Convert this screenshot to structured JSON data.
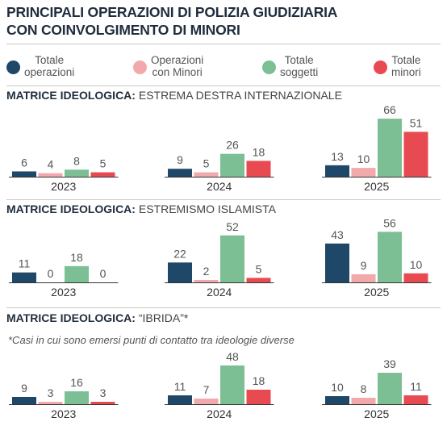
{
  "title": {
    "line1": "PRINCIPALI OPERAZIONI DI POLIZIA GIUDIZIARIA",
    "line2": "CON COINVOLGIMENTO DI MINORI"
  },
  "legend": [
    {
      "line1": "Totale",
      "line2": "operazioni",
      "color": "#1f4768"
    },
    {
      "line1": "Operazioni",
      "line2": "con Minori",
      "color": "#f2a9ab"
    },
    {
      "line1": "Totale",
      "line2": "soggetti",
      "color": "#7dbf95"
    },
    {
      "line1": "Totale",
      "line2": "minori",
      "color": "#e84a52"
    }
  ],
  "sections": [
    {
      "label": "MATRICE IDEOLOGICA",
      "sep": ": ",
      "subtitle": "ESTREMA DESTRA INTERNAZIONALE",
      "note": ""
    },
    {
      "label": "MATRICE IDEOLOGICA",
      "sep": ": ",
      "subtitle": "ESTREMISMO ISLAMISTA",
      "note": ""
    },
    {
      "label": "MATRICE IDEOLOGICA",
      "sep": ": ",
      "subtitle": "“IBRIDA”*",
      "note": "*Casi in cui sono emersi punti di contatto tra ideologie diverse"
    }
  ],
  "chart_data": [
    {
      "type": "bar",
      "title": "MATRICE IDEOLOGICA: ESTREMA DESTRA INTERNAZIONALE",
      "categories": [
        "2023",
        "2024",
        "2025"
      ],
      "series": [
        {
          "name": "Totale operazioni",
          "values": [
            6,
            9,
            13
          ]
        },
        {
          "name": "Operazioni con Minori",
          "values": [
            4,
            5,
            10
          ]
        },
        {
          "name": "Totale soggetti",
          "values": [
            8,
            26,
            66
          ]
        },
        {
          "name": "Totale minori",
          "values": [
            5,
            18,
            51
          ]
        }
      ]
    },
    {
      "type": "bar",
      "title": "MATRICE IDEOLOGICA: ESTREMISMO ISLAMISTA",
      "categories": [
        "2023",
        "2024",
        "2025"
      ],
      "series": [
        {
          "name": "Totale operazioni",
          "values": [
            11,
            22,
            43
          ]
        },
        {
          "name": "Operazioni con Minori",
          "values": [
            0,
            2,
            9
          ]
        },
        {
          "name": "Totale soggetti",
          "values": [
            18,
            52,
            56
          ]
        },
        {
          "name": "Totale minori",
          "values": [
            0,
            5,
            10
          ]
        }
      ]
    },
    {
      "type": "bar",
      "title": "MATRICE IDEOLOGICA: “IBRIDA”*",
      "categories": [
        "2023",
        "2024",
        "2025"
      ],
      "series": [
        {
          "name": "Totale operazioni",
          "values": [
            9,
            11,
            10
          ]
        },
        {
          "name": "Operazioni con Minori",
          "values": [
            3,
            7,
            8
          ]
        },
        {
          "name": "Totale soggetti",
          "values": [
            16,
            48,
            39
          ]
        },
        {
          "name": "Totale minori",
          "values": [
            3,
            18,
            11
          ]
        }
      ]
    }
  ]
}
